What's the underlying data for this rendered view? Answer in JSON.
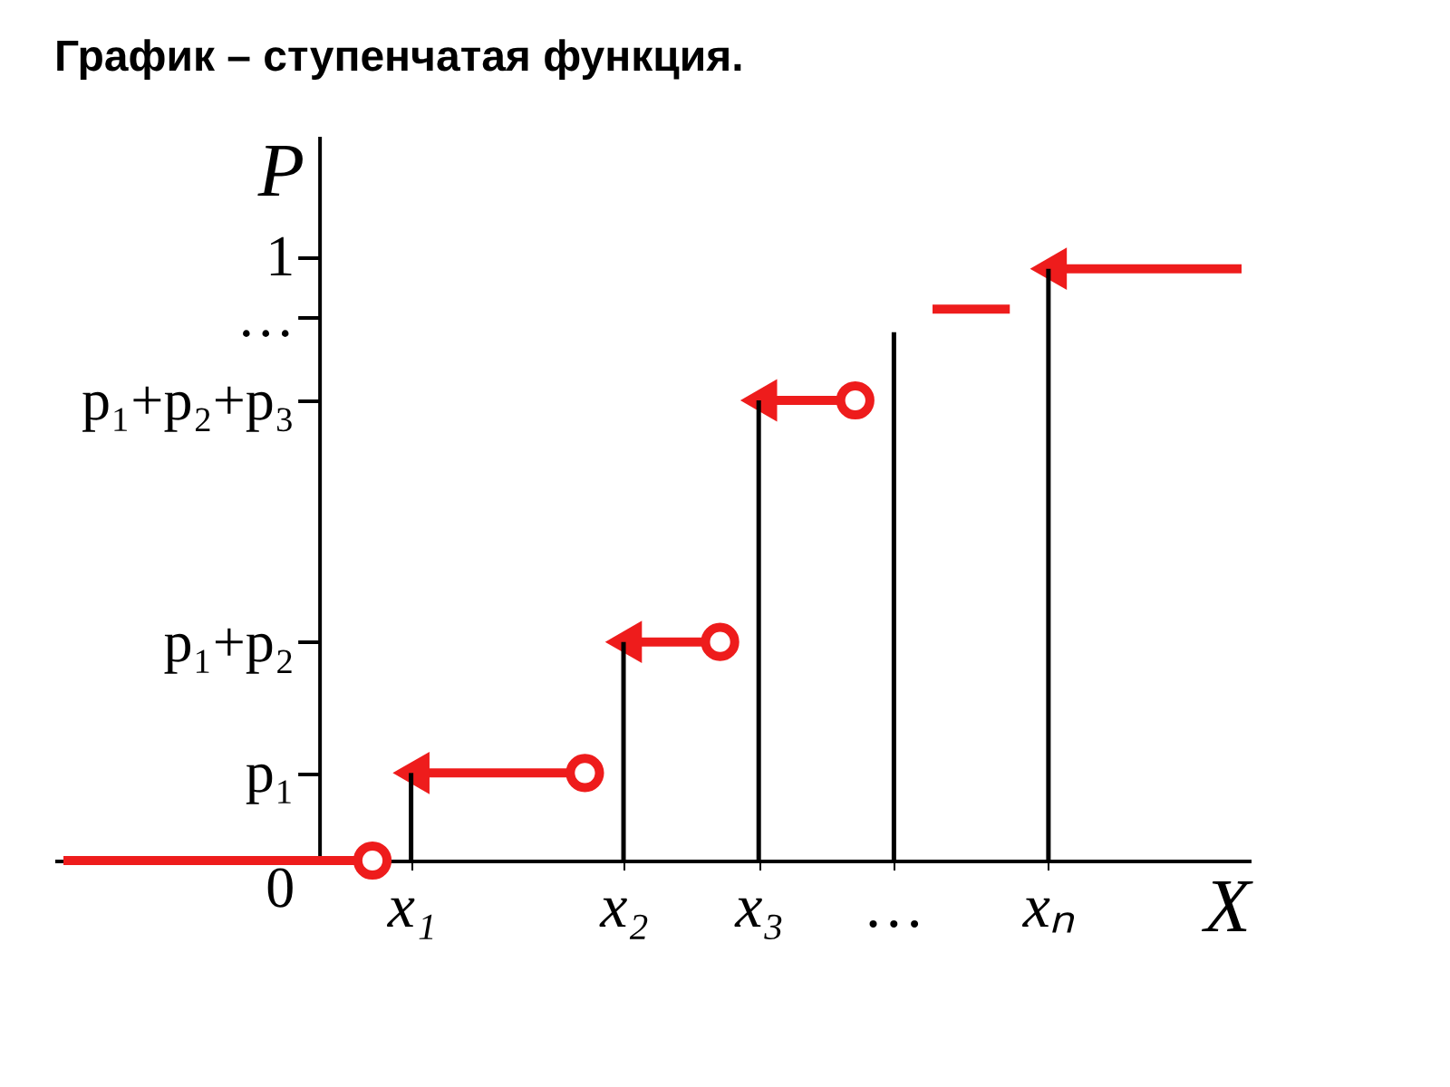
{
  "chart_data": {
    "type": "line",
    "title": "График – ступенчатая функция.",
    "xlabel": "X",
    "ylabel": "P",
    "categories": [
      null,
      null,
      null,
      null,
      null,
      null,
      null,
      null,
      null,
      null,
      null,
      null,
      null,
      null,
      null,
      null,
      null,
      null,
      "x₁",
      null,
      null,
      null,
      null,
      null,
      null,
      null,
      null,
      null,
      null,
      "x₂",
      null,
      null,
      null,
      null,
      null,
      null,
      "x₃",
      null,
      null,
      null,
      null,
      null,
      null,
      "…",
      null,
      null,
      null,
      null,
      null,
      null,
      null,
      "xₙ",
      null,
      null,
      null,
      null,
      null,
      null,
      null,
      null,
      null,
      null
    ],
    "ylim": [
      0,
      1.2
    ],
    "yticks": [
      0,
      {
        "value": 0.145,
        "label": "p₁"
      },
      {
        "value": 0.362,
        "label": "p₁+p₂"
      },
      {
        "value": 0.762,
        "label": "p₁+p₂+p₃"
      },
      {
        "value": 0.9,
        "label": "…"
      },
      1
    ],
    "grid": false,
    "series": [
      {
        "type": "bar",
        "color": "#000000",
        "values": [
          null,
          null,
          null,
          null,
          null,
          null,
          null,
          null,
          null,
          null,
          null,
          null,
          null,
          null,
          null,
          null,
          null,
          null,
          0.145,
          null,
          null,
          null,
          null,
          null,
          null,
          null,
          null,
          null,
          null,
          0.362,
          null,
          null,
          null,
          null,
          null,
          null,
          0.762,
          null,
          null,
          null,
          null,
          null,
          null,
          0.875,
          null,
          null,
          null,
          null,
          null,
          null,
          null,
          0.98,
          null,
          null,
          null,
          null,
          null,
          null,
          null,
          null,
          null,
          null
        ]
      },
      {
        "color": "#ee1c1c",
        "line_style": "solid",
        "values": [
          0,
          0,
          0,
          0,
          0,
          0,
          0,
          0,
          0,
          0,
          0,
          0,
          0,
          0,
          0,
          0,
          0,
          null,
          0.145,
          0.145,
          0.145,
          0.145,
          0.145,
          0.145,
          0.145,
          0.145,
          0.145,
          0.145,
          null,
          0.362,
          0.362,
          0.362,
          0.362,
          0.362,
          0.362,
          null,
          0.762,
          0.762,
          0.762,
          0.762,
          0.762,
          0.762,
          null,
          null,
          null,
          0.913,
          0.913,
          0.913,
          0.913,
          0.913,
          null,
          0.98,
          0.98,
          0.98,
          0.98,
          0.98,
          0.98,
          0.98,
          0.98,
          0.98,
          0.98,
          0.98
        ]
      },
      {
        "type": "scatter",
        "marker": "circle",
        "color": "#ee1c1c",
        "values": [
          null,
          null,
          null,
          null,
          null,
          null,
          null,
          null,
          null,
          null,
          null,
          null,
          null,
          null,
          null,
          null,
          0,
          null,
          null,
          null,
          null,
          null,
          null,
          null,
          null,
          null,
          null,
          0.145,
          null,
          null,
          null,
          null,
          null,
          null,
          0.362,
          null,
          null,
          null,
          null,
          null,
          null,
          0.762,
          null,
          null,
          null,
          null,
          null,
          null,
          null,
          null,
          null,
          null,
          null,
          null,
          null,
          null,
          null,
          null,
          null,
          null,
          null,
          null
        ]
      },
      {
        "type": "scatter",
        "marker": "triangle",
        "color": "#ee1c1c",
        "values": [
          null,
          null,
          null,
          null,
          null,
          null,
          null,
          null,
          null,
          null,
          null,
          null,
          null,
          null,
          null,
          null,
          null,
          null,
          0.145,
          null,
          null,
          null,
          null,
          null,
          null,
          null,
          null,
          null,
          null,
          0.362,
          null,
          null,
          null,
          null,
          null,
          null,
          0.762,
          null,
          null,
          null,
          null,
          null,
          null,
          null,
          null,
          null,
          null,
          null,
          null,
          null,
          null,
          0.98,
          null,
          null,
          null,
          null,
          null,
          null,
          null,
          null,
          null,
          null
        ]
      }
    ]
  }
}
